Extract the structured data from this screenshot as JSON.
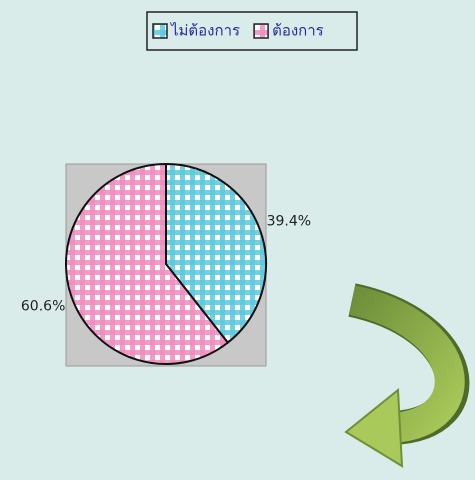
{
  "chart_data": {
    "type": "pie",
    "categories": [
      "ไม่ต้องการ",
      "ต้องการ"
    ],
    "values": [
      39.4,
      60.6
    ],
    "value_labels": [
      "39.4%",
      "60.6%"
    ],
    "colors": [
      "#5cc9dc",
      "#f08cbd"
    ]
  }
}
